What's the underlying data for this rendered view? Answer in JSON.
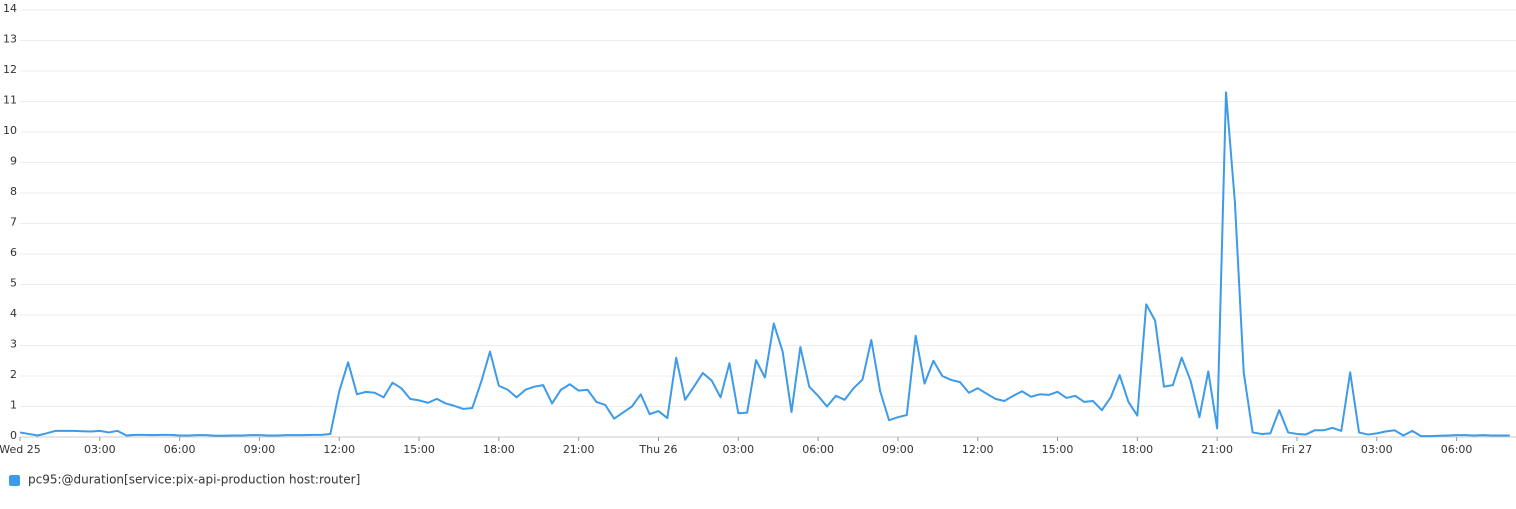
{
  "chart_data": {
    "type": "line",
    "xlim": [
      0,
      3374
    ],
    "ylim": [
      0,
      14
    ],
    "xticks": [
      {
        "value": 0,
        "label": "Wed 25"
      },
      {
        "value": 180,
        "label": "03:00"
      },
      {
        "value": 360,
        "label": "06:00"
      },
      {
        "value": 540,
        "label": "09:00"
      },
      {
        "value": 720,
        "label": "12:00"
      },
      {
        "value": 900,
        "label": "15:00"
      },
      {
        "value": 1080,
        "label": "18:00"
      },
      {
        "value": 1260,
        "label": "21:00"
      },
      {
        "value": 1440,
        "label": "Thu 26"
      },
      {
        "value": 1620,
        "label": "03:00"
      },
      {
        "value": 1800,
        "label": "06:00"
      },
      {
        "value": 1980,
        "label": "09:00"
      },
      {
        "value": 2160,
        "label": "12:00"
      },
      {
        "value": 2340,
        "label": "15:00"
      },
      {
        "value": 2520,
        "label": "18:00"
      },
      {
        "value": 2700,
        "label": "21:00"
      },
      {
        "value": 2880,
        "label": "Fri 27"
      },
      {
        "value": 3060,
        "label": "03:00"
      },
      {
        "value": 3240,
        "label": "06:00"
      }
    ],
    "yticks": [
      0,
      1,
      2,
      3,
      4,
      5,
      6,
      7,
      8,
      9,
      10,
      11,
      12,
      13,
      14
    ],
    "grid": true,
    "x": [
      0,
      20,
      40,
      60,
      80,
      100,
      120,
      140,
      160,
      180,
      200,
      220,
      240,
      260,
      280,
      300,
      320,
      340,
      360,
      380,
      400,
      420,
      440,
      460,
      480,
      500,
      520,
      540,
      560,
      580,
      600,
      620,
      640,
      660,
      680,
      700,
      720,
      740,
      760,
      780,
      800,
      820,
      840,
      860,
      880,
      900,
      920,
      940,
      960,
      980,
      1000,
      1020,
      1040,
      1060,
      1080,
      1100,
      1120,
      1140,
      1160,
      1180,
      1200,
      1220,
      1240,
      1260,
      1280,
      1300,
      1320,
      1340,
      1360,
      1380,
      1400,
      1420,
      1440,
      1460,
      1480,
      1500,
      1520,
      1540,
      1560,
      1580,
      1600,
      1620,
      1640,
      1660,
      1680,
      1700,
      1720,
      1740,
      1760,
      1780,
      1800,
      1820,
      1840,
      1860,
      1880,
      1900,
      1920,
      1940,
      1960,
      1980,
      2000,
      2020,
      2040,
      2060,
      2080,
      2100,
      2120,
      2140,
      2160,
      2180,
      2200,
      2220,
      2240,
      2260,
      2280,
      2300,
      2320,
      2340,
      2360,
      2380,
      2400,
      2420,
      2440,
      2460,
      2480,
      2500,
      2520,
      2540,
      2560,
      2580,
      2600,
      2620,
      2640,
      2660,
      2680,
      2700,
      2720,
      2740,
      2760,
      2780,
      2800,
      2820,
      2840,
      2860,
      2880,
      2900,
      2920,
      2940,
      2960,
      2980,
      3000,
      3020,
      3040,
      3060,
      3080,
      3100,
      3120,
      3140,
      3160,
      3180,
      3200,
      3220,
      3240,
      3260,
      3280,
      3300,
      3320,
      3340,
      3360
    ],
    "series": [
      {
        "name": "pc95:@duration[service:pix-api-production host:router]",
        "color": "#3d9be9",
        "values": [
          0.15,
          0.1,
          0.05,
          0.12,
          0.2,
          0.2,
          0.2,
          0.19,
          0.18,
          0.2,
          0.15,
          0.2,
          0.05,
          0.07,
          0.07,
          0.06,
          0.07,
          0.07,
          0.05,
          0.05,
          0.06,
          0.06,
          0.04,
          0.04,
          0.05,
          0.05,
          0.06,
          0.06,
          0.05,
          0.05,
          0.06,
          0.06,
          0.06,
          0.07,
          0.07,
          0.1,
          1.5,
          2.45,
          1.4,
          1.48,
          1.45,
          1.3,
          1.78,
          1.6,
          1.25,
          1.2,
          1.12,
          1.25,
          1.1,
          1.02,
          0.92,
          0.95,
          1.8,
          2.8,
          1.68,
          1.55,
          1.3,
          1.55,
          1.65,
          1.7,
          1.1,
          1.55,
          1.73,
          1.52,
          1.55,
          1.15,
          1.05,
          0.6,
          0.8,
          1.0,
          1.4,
          0.75,
          0.85,
          0.62,
          2.6,
          1.22,
          1.65,
          2.1,
          1.85,
          1.3,
          2.42,
          0.78,
          0.8,
          2.52,
          1.95,
          3.72,
          2.8,
          0.82,
          2.95,
          1.65,
          1.35,
          1.0,
          1.35,
          1.22,
          1.6,
          1.88,
          3.18,
          1.5,
          0.55,
          0.65,
          0.72,
          3.32,
          1.75,
          2.5,
          2.0,
          1.87,
          1.8,
          1.45,
          1.6,
          1.42,
          1.25,
          1.18,
          1.35,
          1.5,
          1.32,
          1.4,
          1.38,
          1.48,
          1.28,
          1.35,
          1.15,
          1.18,
          0.88,
          1.3,
          2.03,
          1.15,
          0.7,
          4.35,
          3.82,
          1.65,
          1.7,
          2.6,
          1.85,
          0.65,
          2.15,
          0.28,
          11.3,
          7.7,
          2.1,
          0.15,
          0.1,
          0.12,
          0.88,
          0.15,
          0.1,
          0.08,
          0.22,
          0.22,
          0.3,
          0.2,
          2.12,
          0.15,
          0.08,
          0.12,
          0.18,
          0.22,
          0.05,
          0.2,
          0.03,
          0.03,
          0.04,
          0.05,
          0.06,
          0.06,
          0.05,
          0.06,
          0.05,
          0.05,
          0.05
        ]
      }
    ]
  }
}
